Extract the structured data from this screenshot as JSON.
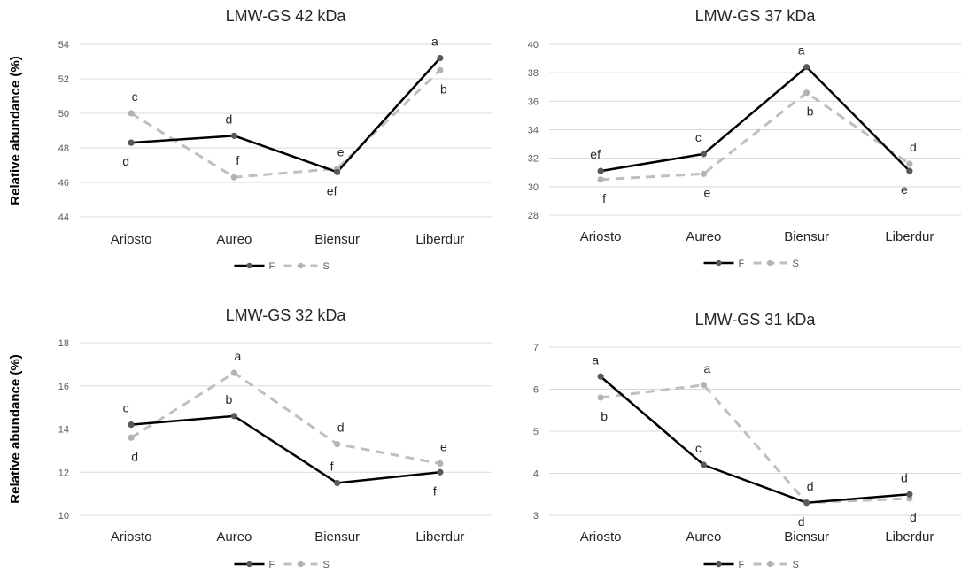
{
  "figure": {
    "ylabel": "Relative abundance (%)",
    "colors": {
      "F": "#000000",
      "F_marker": "#595959",
      "S": "#bfbfbf",
      "S_marker": "#b3b3b3",
      "grid": "#d9d9d9",
      "tick": "#595959",
      "axis_text": "#262626"
    }
  },
  "chart_data": [
    {
      "type": "line",
      "title": "LMW-GS 42 kDa",
      "ylabel": "Relative abundance (%)",
      "categories": [
        "Ariosto",
        "Aureo",
        "Biensur",
        "Liberdur"
      ],
      "ylim": [
        44,
        54
      ],
      "yticks": [
        44,
        46,
        48,
        50,
        52,
        54
      ],
      "grid": true,
      "legend": "bottom",
      "series": [
        {
          "name": "F",
          "style": "solid",
          "values": [
            48.3,
            48.7,
            46.6,
            53.2
          ],
          "letters": [
            "d",
            "d",
            "ef",
            "a"
          ],
          "letter_pos": [
            "below",
            "above",
            "below",
            "above"
          ]
        },
        {
          "name": "S",
          "style": "dashed",
          "values": [
            50.0,
            46.3,
            46.8,
            52.5
          ],
          "letters": [
            "c",
            "f",
            "e",
            "b"
          ],
          "letter_pos": [
            "above",
            "above",
            "above",
            "below"
          ]
        }
      ]
    },
    {
      "type": "line",
      "title": "LMW-GS 37 kDa",
      "ylabel": "",
      "categories": [
        "Ariosto",
        "Aureo",
        "Biensur",
        "Liberdur"
      ],
      "ylim": [
        28,
        40
      ],
      "yticks": [
        28,
        30,
        32,
        34,
        36,
        38,
        40
      ],
      "grid": true,
      "legend": "bottom",
      "series": [
        {
          "name": "F",
          "style": "solid",
          "values": [
            31.1,
            32.3,
            38.4,
            31.1
          ],
          "letters": [
            "ef",
            "c",
            "a",
            "e"
          ],
          "letter_pos": [
            "above",
            "above",
            "above",
            "below"
          ]
        },
        {
          "name": "S",
          "style": "dashed",
          "values": [
            30.5,
            30.9,
            36.6,
            31.6
          ],
          "letters": [
            "f",
            "e",
            "b",
            "d"
          ],
          "letter_pos": [
            "below",
            "below",
            "below",
            "above"
          ]
        }
      ]
    },
    {
      "type": "line",
      "title": "LMW-GS 32 kDa",
      "ylabel": "Relative abundance (%)",
      "categories": [
        "Ariosto",
        "Aureo",
        "Biensur",
        "Liberdur"
      ],
      "ylim": [
        10,
        18
      ],
      "yticks": [
        10,
        12,
        14,
        16,
        18
      ],
      "grid": true,
      "legend": "bottom",
      "series": [
        {
          "name": "F",
          "style": "solid",
          "values": [
            14.2,
            14.6,
            11.5,
            12.0
          ],
          "letters": [
            "c",
            "b",
            "f",
            "f"
          ],
          "letter_pos": [
            "above",
            "above",
            "above",
            "below"
          ]
        },
        {
          "name": "S",
          "style": "dashed",
          "values": [
            13.6,
            16.6,
            13.3,
            12.4
          ],
          "letters": [
            "d",
            "a",
            "d",
            "e"
          ],
          "letter_pos": [
            "below",
            "above",
            "above",
            "above"
          ]
        }
      ]
    },
    {
      "type": "line",
      "title": "LMW-GS 31 kDa",
      "ylabel": "",
      "categories": [
        "Ariosto",
        "Aureo",
        "Biensur",
        "Liberdur"
      ],
      "ylim": [
        3,
        7
      ],
      "yticks": [
        3,
        4,
        5,
        6,
        7
      ],
      "grid": true,
      "legend": "bottom",
      "series": [
        {
          "name": "F",
          "style": "solid",
          "values": [
            6.3,
            4.2,
            3.3,
            3.5
          ],
          "letters": [
            "a",
            "c",
            "d",
            "d"
          ],
          "letter_pos": [
            "above",
            "above",
            "below",
            "above"
          ]
        },
        {
          "name": "S",
          "style": "dashed",
          "values": [
            5.8,
            6.1,
            3.3,
            3.4
          ],
          "letters": [
            "b",
            "a",
            "d",
            "d"
          ],
          "letter_pos": [
            "below",
            "above",
            "above",
            "below"
          ]
        }
      ]
    }
  ]
}
